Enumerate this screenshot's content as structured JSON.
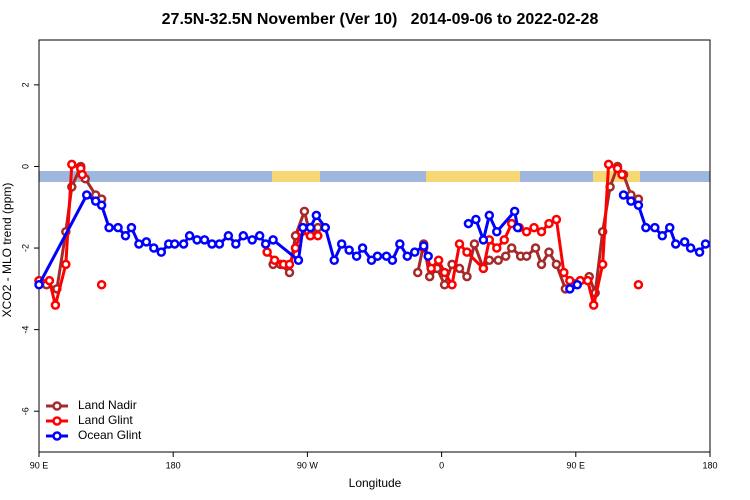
{
  "chart_data": {
    "type": "line",
    "title": "27.5N-32.5N November (Ver 10)   2014-09-06 to 2022-02-28",
    "xlabel": "Longitude",
    "ylabel": "XCO2 - MLO trend (ppm)",
    "xlim": [
      90,
      540
    ],
    "ylim": [
      -7,
      3.1
    ],
    "xticks": [
      {
        "value": 90,
        "label": "90 E"
      },
      180,
      {
        "value": 270,
        "label": "90 W"
      },
      {
        "value": 360,
        "label": "0"
      },
      {
        "value": 450,
        "label": "90 E"
      },
      {
        "value": 540,
        "label": "180"
      }
    ],
    "yticks": [
      2,
      0,
      -2,
      -4,
      -6
    ],
    "legend": "bottom-left",
    "series": [
      {
        "name": "Land Nadir",
        "color": "#a52a2a",
        "x": [
          90,
          95,
          102,
          108,
          112,
          118,
          121,
          128,
          132,
          null,
          247,
          252,
          258,
          262,
          268,
          272,
          277,
          null,
          344,
          348,
          352,
          357,
          362,
          367,
          372,
          377,
          382,
          388,
          392,
          398,
          403,
          407,
          413,
          417,
          423,
          427,
          432,
          437,
          443,
          448,
          453,
          459,
          463,
          468,
          473,
          478,
          482,
          487,
          492
        ],
        "values": [
          -2.8,
          -2.9,
          -3.0,
          -1.6,
          -0.5,
          0.0,
          -0.3,
          -0.7,
          -0.8,
          null,
          -2.4,
          -2.4,
          -2.6,
          -1.7,
          -1.1,
          -1.7,
          -1.5,
          null,
          -2.6,
          -1.9,
          -2.7,
          -2.5,
          -2.9,
          -2.4,
          -2.5,
          -2.7,
          -1.9,
          -2.5,
          -2.3,
          -2.3,
          -2.2,
          -2.0,
          -2.2,
          -2.2,
          -2.0,
          -2.4,
          -2.1,
          -2.4,
          -3.0,
          -2.9,
          -2.8,
          -2.7,
          -3.1,
          -1.6,
          -0.5,
          0.0,
          -0.2,
          -0.7,
          -0.8
        ]
      },
      {
        "name": "Land Glint",
        "color": "#ff0000",
        "x": [
          90,
          97,
          101,
          108,
          112,
          118,
          119,
          null,
          132,
          null,
          243,
          248,
          254,
          258,
          262,
          266,
          272,
          277,
          null,
          348,
          353,
          358,
          362,
          367,
          372,
          377,
          388,
          392,
          397,
          402,
          407,
          412,
          417,
          422,
          427,
          432,
          437,
          442,
          446,
          453,
          458,
          462,
          468,
          472,
          478,
          481,
          null,
          492
        ],
        "values": [
          -2.8,
          -2.8,
          -3.4,
          -2.4,
          0.05,
          -0.05,
          -0.2,
          null,
          -2.9,
          null,
          -2.1,
          -2.3,
          -2.4,
          -2.4,
          -2.0,
          -1.6,
          -1.7,
          -1.7,
          null,
          -2.0,
          -2.5,
          -2.3,
          -2.6,
          -2.9,
          -1.9,
          -2.1,
          -2.5,
          -1.8,
          -2.0,
          -1.8,
          -1.4,
          -1.5,
          -1.6,
          -1.5,
          -1.6,
          -1.4,
          -1.3,
          -2.6,
          -2.8,
          -2.8,
          -2.8,
          -3.4,
          -2.4,
          0.05,
          -0.05,
          -0.2,
          null,
          -2.9
        ]
      },
      {
        "name": "Ocean Glint",
        "color": "#0000ff",
        "x": [
          90,
          122,
          128,
          132,
          137,
          143,
          148,
          152,
          157,
          162,
          167,
          172,
          177,
          181,
          187,
          191,
          196,
          201,
          206,
          211,
          217,
          222,
          227,
          233,
          238,
          242,
          247,
          264,
          267,
          272,
          276,
          282,
          288,
          293,
          298,
          303,
          307,
          313,
          317,
          323,
          327,
          332,
          337,
          342,
          348,
          351,
          null,
          378,
          383,
          388,
          392,
          397,
          409,
          411,
          null,
          446,
          451,
          null,
          482,
          487,
          492,
          497,
          503,
          508,
          513,
          517,
          523,
          527,
          533,
          537
        ],
        "values": [
          -2.9,
          -0.7,
          -0.85,
          -0.95,
          -1.5,
          -1.5,
          -1.7,
          -1.5,
          -1.9,
          -1.85,
          -2.0,
          -2.1,
          -1.9,
          -1.9,
          -1.9,
          -1.7,
          -1.8,
          -1.8,
          -1.9,
          -1.9,
          -1.7,
          -1.9,
          -1.7,
          -1.8,
          -1.7,
          -1.9,
          -1.8,
          -2.3,
          -1.5,
          -1.5,
          -1.2,
          -1.5,
          -2.3,
          -1.9,
          -2.05,
          -2.2,
          -2.0,
          -2.3,
          -2.2,
          -2.2,
          -2.3,
          -1.9,
          -2.2,
          -2.1,
          -1.95,
          -2.2,
          null,
          -1.4,
          -1.3,
          -1.8,
          -1.2,
          -1.6,
          -1.1,
          -1.5,
          null,
          -3.0,
          -2.9,
          null,
          -0.7,
          -0.85,
          -0.95,
          -1.5,
          -1.5,
          -1.7,
          -1.5,
          -1.9,
          -1.85,
          -2.0,
          -2.1,
          -1.9
        ]
      }
    ]
  }
}
